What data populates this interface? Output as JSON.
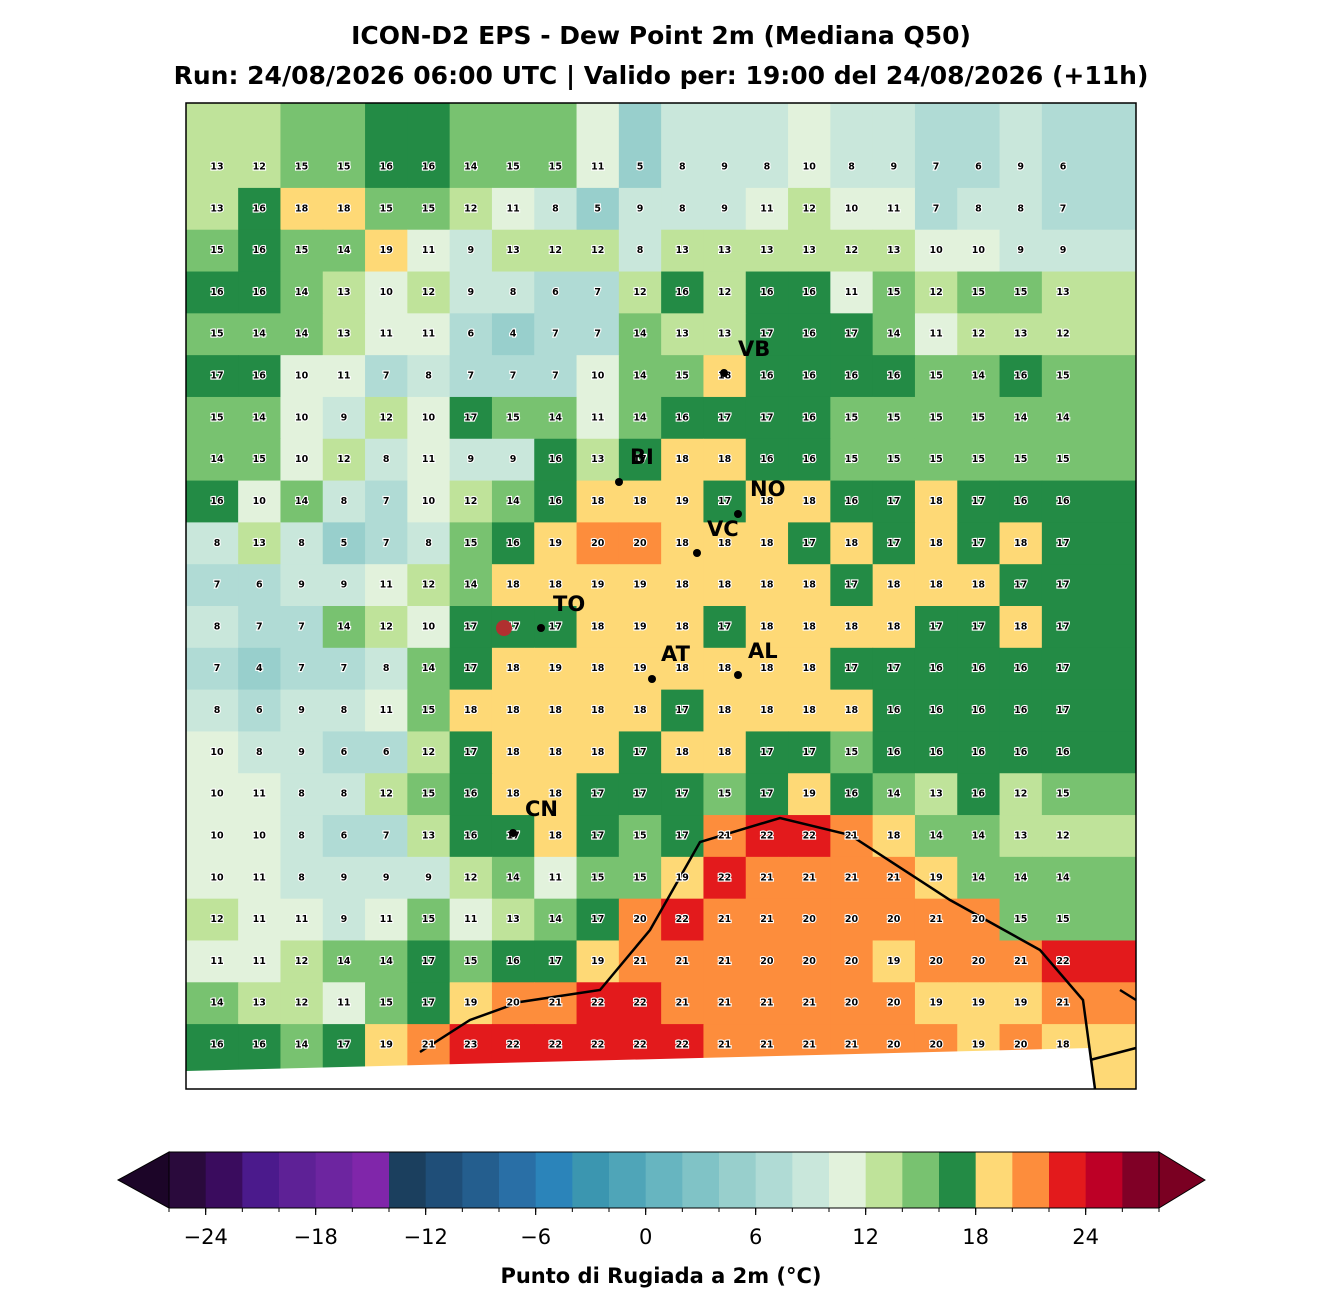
{
  "title": "ICON-D2 EPS - Dew Point 2m (Mediana Q50)",
  "subtitle": "Run: 24/08/2026 06:00 UTC | Valido per: 19:00 del 24/08/2026 (+11h)",
  "grid_values": [
    [
      13,
      12,
      15,
      15,
      16,
      16,
      14,
      15,
      15,
      11,
      5,
      8,
      9,
      8,
      10,
      8,
      9,
      7,
      6,
      9,
      6
    ],
    [
      13,
      16,
      18,
      18,
      15,
      15,
      12,
      11,
      8,
      5,
      9,
      8,
      9,
      11,
      12,
      10,
      11,
      7,
      8,
      8,
      7
    ],
    [
      15,
      16,
      15,
      14,
      19,
      11,
      9,
      13,
      12,
      12,
      8,
      13,
      13,
      13,
      13,
      12,
      13,
      10,
      10,
      9,
      9
    ],
    [
      16,
      16,
      14,
      13,
      10,
      12,
      9,
      8,
      6,
      7,
      12,
      16,
      12,
      16,
      16,
      11,
      15,
      12,
      15,
      15,
      13
    ],
    [
      15,
      14,
      14,
      13,
      11,
      11,
      6,
      4,
      7,
      7,
      14,
      13,
      13,
      17,
      16,
      17,
      14,
      11,
      12,
      13,
      12
    ],
    [
      17,
      16,
      10,
      11,
      7,
      8,
      7,
      7,
      7,
      10,
      14,
      15,
      18,
      16,
      16,
      16,
      16,
      15,
      14,
      16,
      15
    ],
    [
      15,
      14,
      10,
      9,
      12,
      10,
      17,
      15,
      14,
      11,
      14,
      16,
      17,
      17,
      16,
      15,
      15,
      15,
      15,
      14,
      14
    ],
    [
      14,
      15,
      10,
      12,
      8,
      11,
      9,
      9,
      16,
      13,
      17,
      18,
      18,
      16,
      16,
      15,
      15,
      15,
      15,
      15,
      15
    ],
    [
      16,
      10,
      14,
      8,
      7,
      10,
      12,
      14,
      16,
      18,
      18,
      19,
      17,
      18,
      18,
      16,
      17,
      18,
      17,
      16,
      16
    ],
    [
      8,
      13,
      8,
      5,
      7,
      8,
      15,
      16,
      19,
      20,
      20,
      18,
      18,
      18,
      17,
      18,
      17,
      18,
      17,
      18,
      17
    ],
    [
      7,
      6,
      9,
      9,
      11,
      12,
      14,
      18,
      18,
      19,
      19,
      18,
      18,
      18,
      18,
      17,
      18,
      18,
      18,
      17,
      17
    ],
    [
      8,
      7,
      7,
      14,
      12,
      10,
      17,
      17,
      17,
      18,
      19,
      18,
      17,
      18,
      18,
      18,
      18,
      17,
      17,
      18,
      17
    ],
    [
      7,
      4,
      7,
      7,
      8,
      14,
      17,
      18,
      19,
      18,
      19,
      18,
      18,
      18,
      18,
      17,
      17,
      16,
      16,
      16,
      17
    ],
    [
      8,
      6,
      9,
      8,
      11,
      15,
      18,
      18,
      18,
      18,
      18,
      17,
      18,
      18,
      18,
      18,
      16,
      16,
      16,
      16,
      17
    ],
    [
      10,
      8,
      9,
      6,
      6,
      12,
      17,
      18,
      18,
      18,
      17,
      18,
      18,
      17,
      17,
      15,
      16,
      16,
      16,
      16,
      16
    ],
    [
      10,
      11,
      8,
      8,
      12,
      15,
      16,
      18,
      18,
      17,
      17,
      17,
      15,
      17,
      19,
      16,
      14,
      13,
      16,
      12,
      15
    ],
    [
      10,
      10,
      8,
      6,
      7,
      13,
      16,
      17,
      18,
      17,
      15,
      17,
      21,
      22,
      22,
      21,
      18,
      14,
      14,
      13,
      12
    ],
    [
      10,
      11,
      8,
      9,
      9,
      9,
      12,
      14,
      11,
      15,
      15,
      19,
      22,
      21,
      21,
      21,
      21,
      19,
      14,
      14,
      14
    ],
    [
      12,
      11,
      11,
      9,
      11,
      15,
      11,
      13,
      14,
      17,
      20,
      22,
      21,
      21,
      20,
      20,
      20,
      21,
      20,
      15,
      15
    ],
    [
      11,
      11,
      12,
      14,
      14,
      17,
      15,
      16,
      17,
      19,
      21,
      21,
      21,
      20,
      20,
      20,
      19,
      20,
      20,
      21,
      22
    ],
    [
      14,
      13,
      12,
      11,
      15,
      17,
      19,
      20,
      21,
      22,
      22,
      21,
      21,
      21,
      21,
      20,
      20,
      19,
      19,
      19,
      21
    ],
    [
      16,
      16,
      14,
      17,
      19,
      21,
      23,
      22,
      22,
      22,
      22,
      22,
      21,
      21,
      21,
      21,
      20,
      20,
      19,
      20,
      18
    ]
  ],
  "cities": [
    {
      "name": "VB"
    },
    {
      "name": "BI"
    },
    {
      "name": "NO"
    },
    {
      "name": "VC"
    },
    {
      "name": "TO"
    },
    {
      "name": "AT"
    },
    {
      "name": "AL"
    },
    {
      "name": "CN"
    }
  ],
  "colorbar": {
    "label": "Punto di Rugiada a 2m (°C)",
    "levels": [
      -26,
      -24,
      -22,
      -20,
      -18,
      -16,
      -14,
      -12,
      -10,
      -8,
      -6,
      -4,
      -2,
      0,
      2,
      4,
      6,
      8,
      10,
      12,
      14,
      16,
      18,
      20,
      22,
      24,
      26,
      28
    ],
    "colors": [
      "#2a0a3c",
      "#3a0c5e",
      "#4b1a8c",
      "#5e2196",
      "#6d25a0",
      "#8026aa",
      "#1b3f5e",
      "#1f4e78",
      "#245e8e",
      "#296fa6",
      "#2b84ba",
      "#3b96b0",
      "#4fa5b8",
      "#67b5c0",
      "#80c3c6",
      "#98cfcc",
      "#b0dbd5",
      "#c9e7db",
      "#e2f2dc",
      "#bfe39a",
      "#78c270",
      "#238b45",
      "#fed976",
      "#fd8d3c",
      "#e31a1c",
      "#bd0026",
      "#800026"
    ],
    "under": "#1c0528",
    "over": "#7a0022",
    "ticks": [
      {
        "value": -24,
        "label": "−24"
      },
      {
        "value": -18,
        "label": "−18"
      },
      {
        "value": -12,
        "label": "−12"
      },
      {
        "value": -6,
        "label": "−6"
      },
      0,
      6,
      12,
      18,
      24
    ]
  }
}
